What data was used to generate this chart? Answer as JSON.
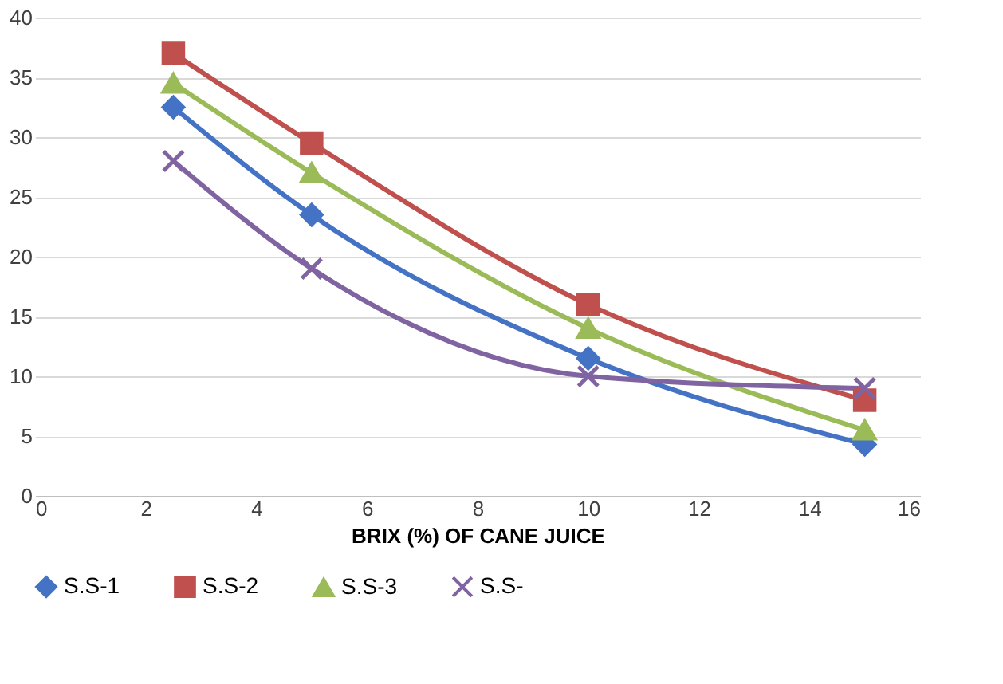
{
  "chart_data": {
    "type": "line",
    "xlabel": "BRIX (%) OF CANE JUICE",
    "x": [
      2.5,
      5,
      10,
      15
    ],
    "series": [
      {
        "name": "S.S-1",
        "color": "#4472c4",
        "marker": "diamond",
        "values": [
          32.5,
          23.5,
          11.5,
          4.3
        ]
      },
      {
        "name": "S.S-2",
        "color": "#c0504d",
        "marker": "square",
        "values": [
          37,
          29.5,
          16,
          8
        ]
      },
      {
        "name": "S.S-3",
        "color": "#9bbb59",
        "marker": "triangle",
        "values": [
          34.5,
          27,
          14,
          5.5
        ]
      },
      {
        "name": "S.S-",
        "color": "#8064a2",
        "marker": "cross",
        "values": [
          28,
          19,
          10,
          9
        ]
      }
    ],
    "xlim": [
      0,
      16
    ],
    "xticks": [
      0,
      2,
      4,
      6,
      8,
      10,
      12,
      14,
      16
    ],
    "ylim": [
      0,
      40
    ],
    "yticks": [
      0,
      5,
      10,
      15,
      20,
      25,
      30,
      35,
      40
    ],
    "grid": "y",
    "legend": "bottom"
  }
}
